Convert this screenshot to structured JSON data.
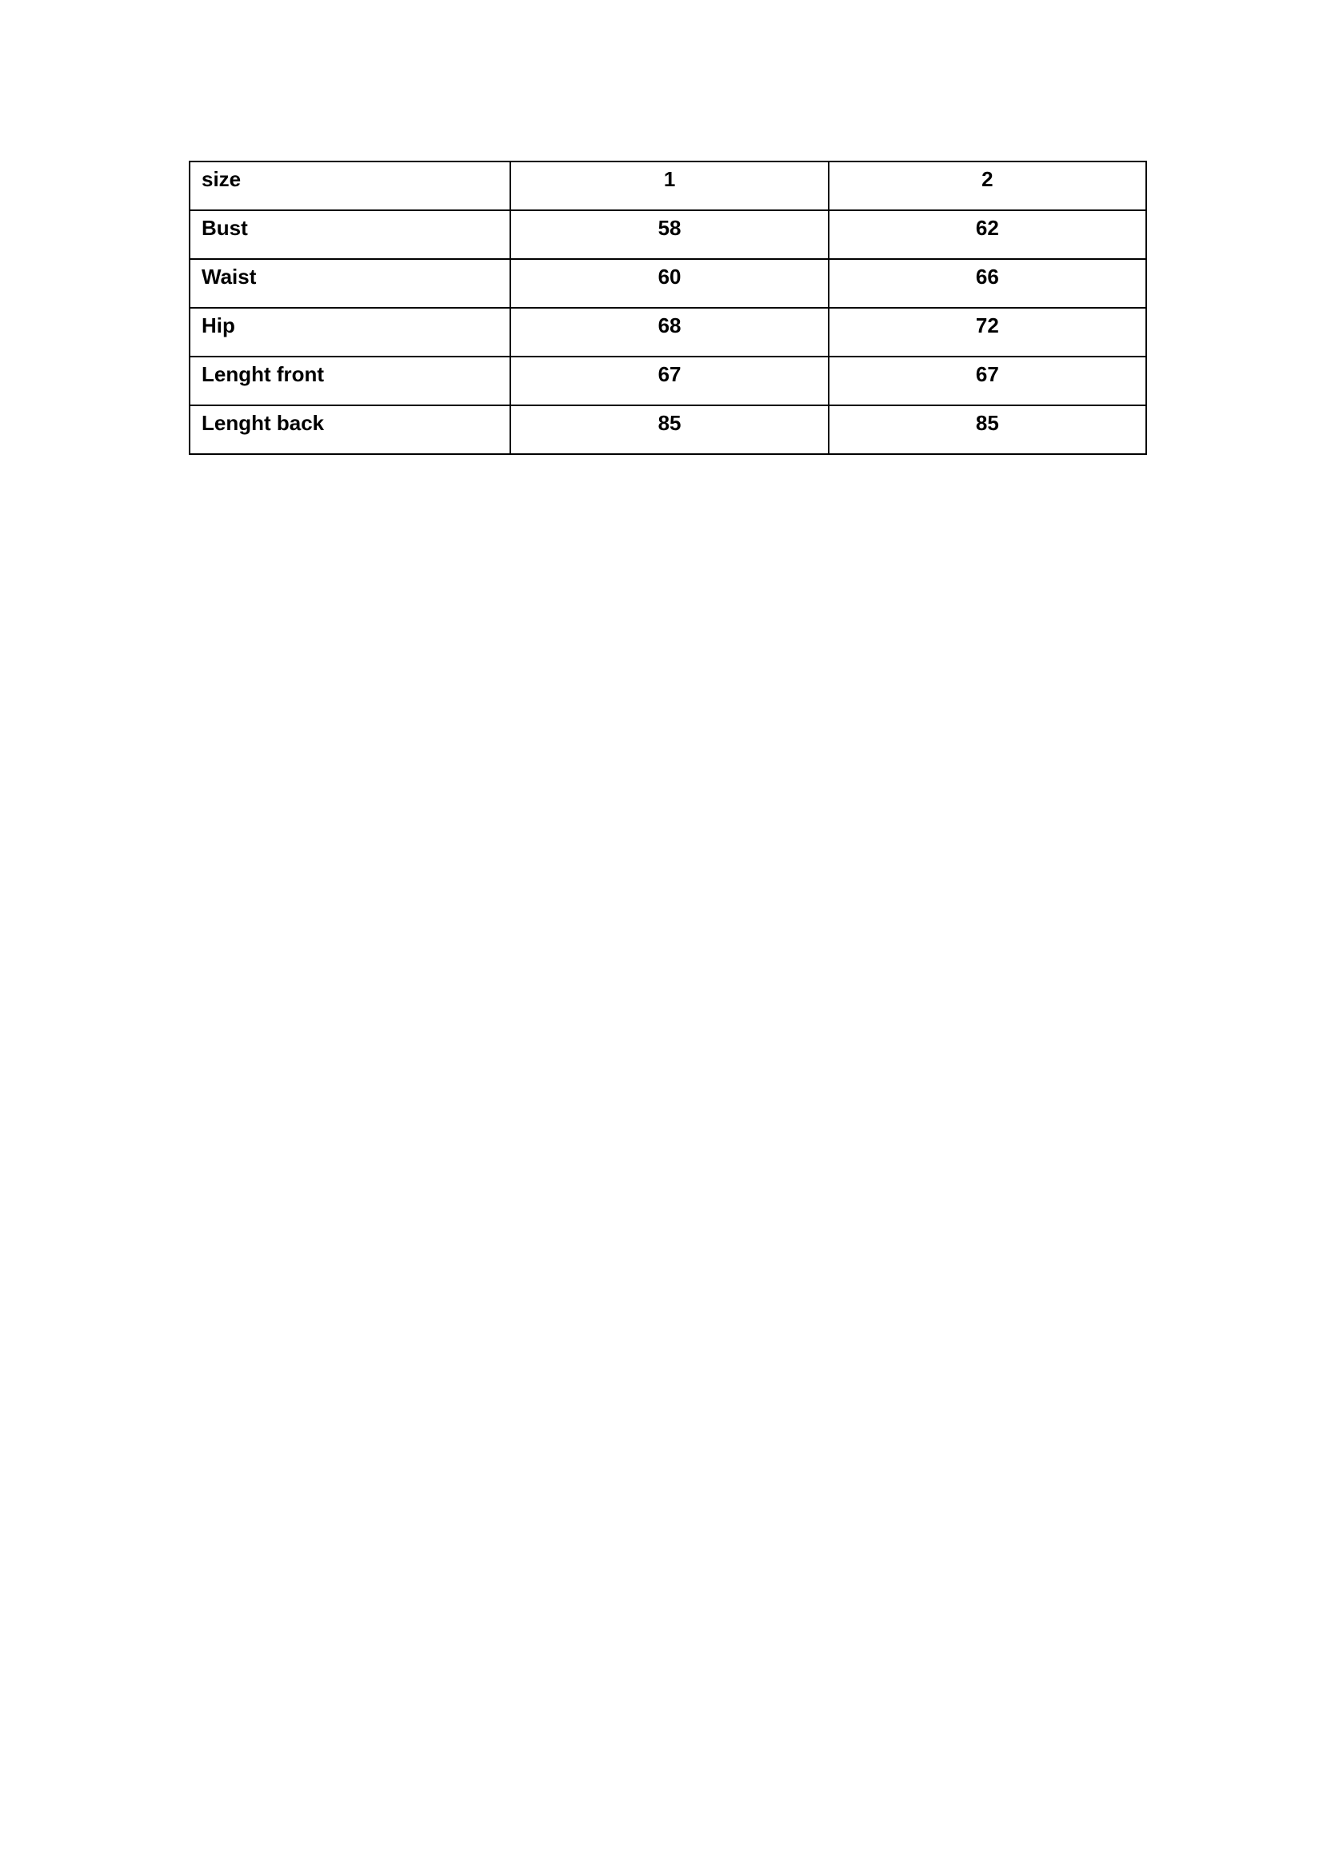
{
  "size_table": {
    "header": {
      "label": "size",
      "values": [
        "1",
        "2"
      ]
    },
    "rows": [
      {
        "label": "Bust",
        "values": [
          "58",
          "62"
        ]
      },
      {
        "label": "Waist",
        "values": [
          "60",
          "66"
        ]
      },
      {
        "label": "Hip",
        "values": [
          "68",
          "72"
        ]
      },
      {
        "label": "Lenght front",
        "values": [
          "67",
          "67"
        ]
      },
      {
        "label": "Lenght back",
        "values": [
          "85",
          "85"
        ]
      }
    ]
  }
}
